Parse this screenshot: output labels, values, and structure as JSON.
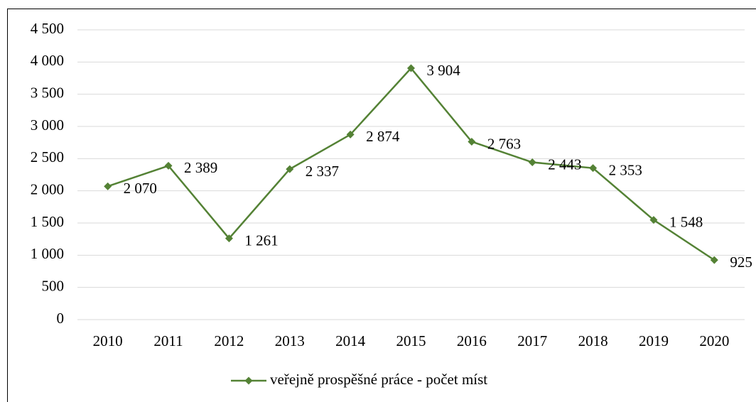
{
  "chart_data": {
    "type": "line",
    "categories": [
      "2010",
      "2011",
      "2012",
      "2013",
      "2014",
      "2015",
      "2016",
      "2017",
      "2018",
      "2019",
      "2020"
    ],
    "series": [
      {
        "name": "veřejně prospěšné práce - počet míst",
        "color": "#548235",
        "values": [
          2070,
          2389,
          1261,
          2337,
          2874,
          3904,
          2763,
          2443,
          2353,
          1548,
          925
        ],
        "value_labels": [
          "2 070",
          "2 389",
          "1 261",
          "2 337",
          "2 874",
          "3 904",
          "2 763",
          "2 443",
          "2 353",
          "1 548",
          "925"
        ]
      }
    ],
    "ylim": [
      0,
      4500
    ],
    "yticks": [
      0,
      500,
      {
        "value": 1000,
        "label": "1 000"
      },
      {
        "value": 1500,
        "label": "1 500"
      },
      {
        "value": 2000,
        "label": "2 000"
      },
      {
        "value": 2500,
        "label": "2 500"
      },
      {
        "value": 3000,
        "label": "3 000"
      },
      {
        "value": 3500,
        "label": "3 500"
      },
      {
        "value": 4000,
        "label": "4 000"
      },
      {
        "value": 4500,
        "label": "4 500"
      }
    ],
    "grid": true,
    "legend": "bottom"
  }
}
